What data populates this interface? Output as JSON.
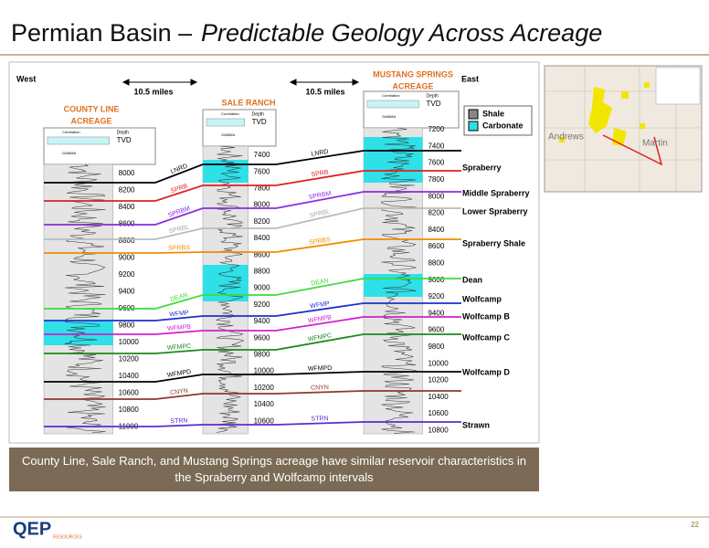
{
  "title": {
    "regular": "Permian Basin –",
    "italic": "Predictable Geology Across Acreage"
  },
  "directions": {
    "west": "West",
    "east": "East"
  },
  "distances": [
    "10.5 miles",
    "10.5 miles"
  ],
  "log_header": {
    "correlation": "Correlation",
    "depth": "Depth",
    "tvd": "TVD",
    "gamma": "GAMMA"
  },
  "wells": [
    {
      "name": [
        "COUNTY LINE",
        "ACREAGE"
      ],
      "depths": [
        8000,
        8200,
        8400,
        8600,
        8800,
        9000,
        9200,
        9400,
        9600,
        9800,
        10000,
        10200,
        10400,
        10600,
        10800,
        11000
      ]
    },
    {
      "name": [
        "SALE RANCH"
      ],
      "depths": [
        7400,
        7600,
        7800,
        8000,
        8200,
        8400,
        8600,
        8800,
        9000,
        9200,
        9400,
        9600,
        9800,
        10000,
        10200,
        10400,
        10600
      ]
    },
    {
      "name": [
        "MUSTANG SPRINGS",
        "ACREAGE"
      ],
      "depths": [
        7200,
        7400,
        7600,
        7800,
        8000,
        8200,
        8400,
        8600,
        8800,
        9000,
        9200,
        9400,
        9600,
        9800,
        10000,
        10200,
        10400,
        10600,
        10800
      ]
    }
  ],
  "correlations": [
    "LNRD",
    "SPRB",
    "SPRBM",
    "SPRBL",
    "SPRBS",
    "DEAN",
    "WFMP",
    "WFMPB",
    "WFMPC",
    "WFMPD",
    "CNYN",
    "STRN"
  ],
  "formations": [
    "Spraberry",
    "Middle Spraberry",
    "Lower Spraberry",
    "Spraberry Shale",
    "Dean",
    "Wolfcamp",
    "Wolfcamp B",
    "Wolfcamp C",
    "Wolfcamp D",
    "Strawn"
  ],
  "legend": [
    "Shale",
    "Carbonate"
  ],
  "map": {
    "labels": [
      "Andrews",
      "Martin"
    ]
  },
  "caption": "County Line, Sale Ranch, and Mustang Springs acreage have similar reservoir characteristics in the Spraberry and Wolfcamp intervals",
  "footer": {
    "logo": "QEP",
    "logo_sub": "RESOURCES",
    "page": "22"
  }
}
